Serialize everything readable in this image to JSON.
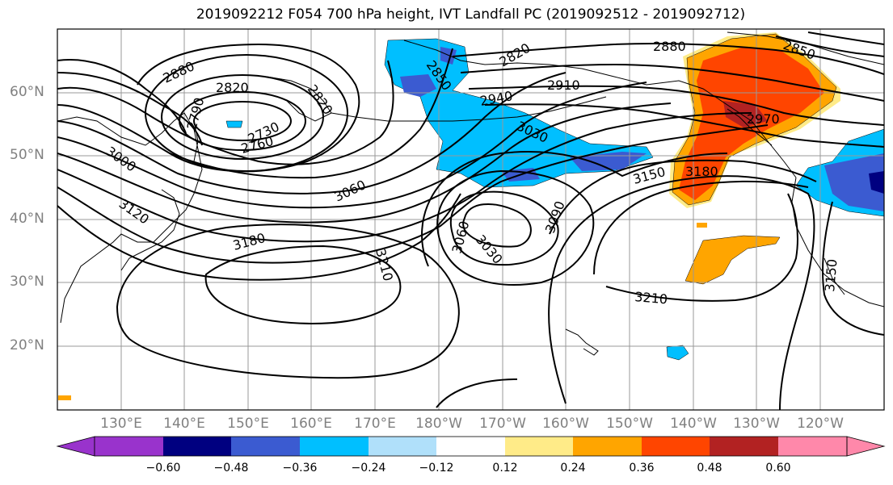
{
  "title": "2019092212 F054 700 hPa height, IVT Landfall PC (2019092512 - 2019092712)",
  "lat_labels": [
    "60°N",
    "50°N",
    "40°N",
    "30°N",
    "20°N"
  ],
  "lon_labels": [
    "130°E",
    "140°E",
    "150°E",
    "160°E",
    "170°E",
    "180°W",
    "170°W",
    "160°W",
    "150°W",
    "140°W",
    "130°W",
    "120°W"
  ],
  "colorbar": {
    "ticks": [
      "−0.60",
      "−0.48",
      "−0.36",
      "−0.24",
      "−0.12",
      "0.12",
      "0.24",
      "0.36",
      "0.48",
      "0.60"
    ],
    "colors": [
      "#9933cc",
      "#000080",
      "#3b5bd1",
      "#00bfff",
      "#b0e0fa",
      "#ffffff",
      "#ffeb88",
      "#ffa500",
      "#ff4500",
      "#b22222",
      "#ff88aa"
    ]
  },
  "contour_labels": [
    "2880",
    "2820",
    "2790",
    "2730",
    "2760",
    "2850",
    "2820",
    "2910",
    "2940",
    "2880",
    "2850",
    "2820",
    "3030",
    "2970",
    "3000",
    "3120",
    "3060",
    "3180",
    "3210",
    "3060",
    "3030",
    "3090",
    "3150",
    "3180",
    "3210",
    "3150"
  ]
}
